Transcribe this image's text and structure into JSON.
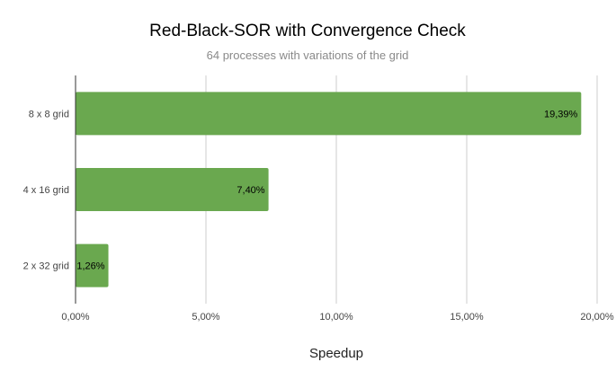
{
  "chart_data": {
    "type": "bar",
    "orientation": "horizontal",
    "title": "Red-Black-SOR with Convergence Check",
    "subtitle": "64 processes with variations of the grid",
    "xlabel": "Speedup",
    "ylabel": "",
    "categories": [
      "8 x 8 grid",
      "4 x 16 grid",
      "2 x 32 grid"
    ],
    "values": [
      19.39,
      7.4,
      1.26
    ],
    "value_labels": [
      "19,39%",
      "7,40%",
      "1,26%"
    ],
    "xlim": [
      0,
      20
    ],
    "xticks": [
      0,
      5,
      10,
      15,
      20
    ],
    "xtick_labels": [
      "0,00%",
      "5,00%",
      "10,00%",
      "15,00%",
      "20,00%"
    ],
    "grid": true,
    "legend": "none",
    "bar_color": "#6aa84f",
    "gridline_color": "#cccccc",
    "axis_color": "#333333"
  }
}
